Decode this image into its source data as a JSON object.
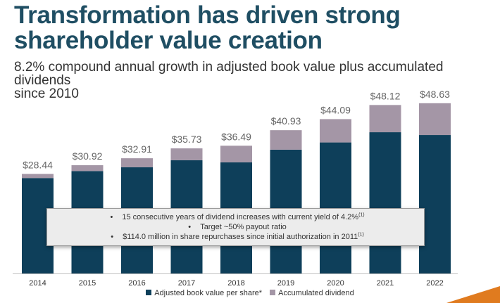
{
  "header": {
    "title_line1": "Transformation has driven strong",
    "title_line2": "shareholder value creation",
    "subtitle_line1": "8.2% compound annual growth in adjusted book value plus accumulated dividends",
    "subtitle_line2": "since 2010"
  },
  "callout": {
    "bullet": "•",
    "line1_text": "15 consecutive years of dividend increases with current yield of 4.2%",
    "line1_note": "(1)",
    "line2_text": "Target ~50% payout ratio",
    "line3_text": "$114.0 million in share repurchases since initial authorization in 2011",
    "line3_note": "(1)"
  },
  "legend": {
    "book_value": "Adjusted book value per share*",
    "dividend": "Accumulated dividend"
  },
  "colors": {
    "title": "#1f4e63",
    "book_value": "#0e3f5a",
    "dividend": "#a496a6",
    "label": "#666666",
    "accent": "#e07b1f"
  },
  "chart_data": {
    "type": "bar",
    "stacked": true,
    "categories": [
      "2014",
      "2015",
      "2016",
      "2017",
      "2018",
      "2019",
      "2020",
      "2021",
      "2022"
    ],
    "series": [
      {
        "name": "Adjusted book value per share*",
        "values": [
          27.26,
          29.26,
          30.36,
          32.36,
          31.75,
          35.36,
          37.43,
          40.35,
          39.55
        ]
      },
      {
        "name": "Accumulated dividend",
        "values": [
          1.18,
          1.66,
          2.55,
          3.37,
          4.74,
          5.57,
          6.66,
          7.77,
          9.08
        ]
      }
    ],
    "totals": [
      28.44,
      30.92,
      32.91,
      35.73,
      36.49,
      40.93,
      44.09,
      48.12,
      48.63
    ],
    "total_labels": [
      "$28.44",
      "$30.92",
      "$32.91",
      "$35.73",
      "$36.49",
      "$40.93",
      "$44.09",
      "$48.12",
      "$48.63"
    ],
    "ylim": [
      0,
      50
    ],
    "xlabel": "",
    "ylabel": "",
    "legend_position": "bottom"
  }
}
